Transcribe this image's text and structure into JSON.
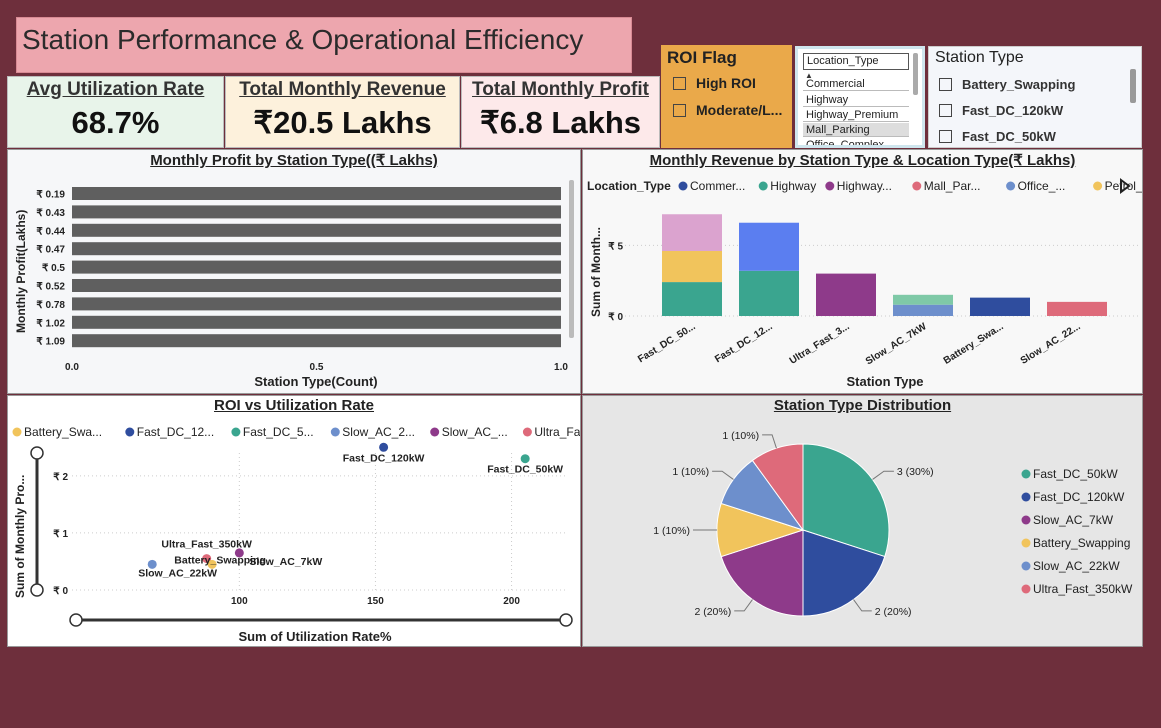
{
  "dashboard": {
    "title": "Station Performance & Operational Efficiency"
  },
  "kpis": [
    {
      "label": "Avg Utilization Rate",
      "value": "68.7%",
      "bg": "#e8f4ea"
    },
    {
      "label": "Total Monthly Revenue",
      "value": "₹20.5 Lakhs",
      "bg": "#fdf1dc"
    },
    {
      "label": "Total Monthly Profit",
      "value": "₹6.8 Lakhs",
      "bg": "#fde9ea"
    }
  ],
  "roi_flag": {
    "title": "ROI Flag",
    "options": [
      "High ROI",
      "Moderate/L..."
    ]
  },
  "location_filter": {
    "selected": "Location_Type",
    "options": [
      "Commercial",
      "Highway",
      "Highway_Premium",
      "Mall_Parking",
      "Office_Complex"
    ]
  },
  "station_type_filter": {
    "title": "Station Type",
    "options": [
      "Battery_Swapping",
      "Fast_DC_120kW",
      "Fast_DC_50kW"
    ]
  },
  "profit_chart": {
    "title": "Monthly Profit by Station Type((₹ Lakhs)",
    "xlabel": "Station Type(Count)",
    "ylabel": "Monthly Profit(Lakhs)",
    "chart_data": {
      "type": "bar",
      "orientation": "horizontal",
      "categories": [
        "₹ 0.19",
        "₹ 0.43",
        "₹ 0.44",
        "₹ 0.47",
        "₹ 0.5",
        "₹ 0.52",
        "₹ 0.78",
        "₹ 1.02",
        "₹ 1.09"
      ],
      "values": [
        1,
        1,
        1,
        1,
        1,
        1,
        1,
        1,
        1
      ],
      "xlim": [
        0,
        1
      ],
      "xticks": [
        "0.0",
        "0.5",
        "1.0"
      ],
      "color": "#5f5f5f"
    }
  },
  "revenue_chart": {
    "title": "Monthly Revenue by Station Type & Location Type(₹ Lakhs)",
    "xlabel": "Station Type",
    "ylabel": "Sum of Month...",
    "legend_title": "Location_Type",
    "legend": [
      {
        "name": "Commer...",
        "color": "#2f4d9e"
      },
      {
        "name": "Highway",
        "color": "#3aa58f"
      },
      {
        "name": "Highway...",
        "color": "#8e3a8a"
      },
      {
        "name": "Mall_Par...",
        "color": "#de6a7a"
      },
      {
        "name": "Office_...",
        "color": "#6d8fcc"
      },
      {
        "name": "Petrol_...",
        "color": "#f1c45c"
      }
    ],
    "chart_data": {
      "type": "bar",
      "stacked": true,
      "categories": [
        "Fast_DC_50...",
        "Fast_DC_12...",
        "Ultra_Fast_3...",
        "Slow_AC_7kW",
        "Battery_Swa...",
        "Slow_AC_22..."
      ],
      "yticks": [
        "₹ 0",
        "₹ 5"
      ],
      "ylim": [
        0,
        7.5
      ],
      "stacks": [
        [
          {
            "value": 2.4,
            "color": "#3aa58f"
          },
          {
            "value": 2.2,
            "color": "#f1c45c"
          },
          {
            "value": 2.6,
            "color": "#dba3cf"
          }
        ],
        [
          {
            "value": 3.2,
            "color": "#3aa58f"
          },
          {
            "value": 3.4,
            "color": "#5b7ef0"
          }
        ],
        [
          {
            "value": 3.0,
            "color": "#8e3a8a"
          }
        ],
        [
          {
            "value": 0.8,
            "color": "#6d8fcc"
          },
          {
            "value": 0.7,
            "color": "#7fc9a7"
          }
        ],
        [
          {
            "value": 1.3,
            "color": "#2f4d9e"
          }
        ],
        [
          {
            "value": 1.0,
            "color": "#de6a7a"
          }
        ]
      ]
    }
  },
  "scatter_chart": {
    "title": "ROI vs Utilization Rate",
    "xlabel": "Sum of Utilization Rate%",
    "ylabel": "Sum of Monthly Pro...",
    "legend": [
      {
        "name": "Battery_Swa...",
        "color": "#f1c45c"
      },
      {
        "name": "Fast_DC_12...",
        "color": "#2f4d9e"
      },
      {
        "name": "Fast_DC_5...",
        "color": "#3aa58f"
      },
      {
        "name": "Slow_AC_2...",
        "color": "#6d8fcc"
      },
      {
        "name": "Slow_AC_...",
        "color": "#8e3a8a"
      },
      {
        "name": "Ultra_Fa...",
        "color": "#de6a7a"
      }
    ],
    "chart_data": {
      "type": "scatter",
      "xlim": [
        40,
        220
      ],
      "ylim": [
        0,
        2.4
      ],
      "xticks": [
        100,
        150,
        200
      ],
      "yticks": [
        "₹ 0",
        "₹ 1",
        "₹ 2"
      ],
      "points": [
        {
          "label": "Fast_DC_120kW",
          "x": 153,
          "y": 2.5,
          "color": "#2f4d9e"
        },
        {
          "label": "Fast_DC_50kW",
          "x": 205,
          "y": 2.3,
          "color": "#3aa58f"
        },
        {
          "label": "Ultra_Fast_350kW",
          "x": 88,
          "y": 0.55,
          "color": "#de6a7a"
        },
        {
          "label": "Battery_Swapping",
          "x": 90,
          "y": 0.45,
          "color": "#f1c45c"
        },
        {
          "label": "Slow_AC_7kW",
          "x": 100,
          "y": 0.65,
          "color": "#8e3a8a"
        },
        {
          "label": "Slow_AC_22kW",
          "x": 68,
          "y": 0.45,
          "color": "#6d8fcc"
        }
      ]
    }
  },
  "pie_chart": {
    "title": "Station Type Distribution",
    "chart_data": {
      "type": "pie",
      "slices": [
        {
          "name": "Fast_DC_50kW",
          "value": 3,
          "label": "3 (30%)",
          "color": "#3aa58f"
        },
        {
          "name": "Fast_DC_120kW",
          "value": 2,
          "label": "2 (20%)",
          "color": "#2f4d9e"
        },
        {
          "name": "Slow_AC_7kW",
          "value": 2,
          "label": "2 (20%)",
          "color": "#8e3a8a"
        },
        {
          "name": "Battery_Swapping",
          "value": 1,
          "label": "1 (10%)",
          "color": "#f1c45c"
        },
        {
          "name": "Slow_AC_22kW",
          "value": 1,
          "label": "1 (10%)",
          "color": "#6d8fcc"
        },
        {
          "name": "Ultra_Fast_350kW",
          "value": 1,
          "label": "1 (10%)",
          "color": "#de6a7a"
        }
      ]
    }
  }
}
